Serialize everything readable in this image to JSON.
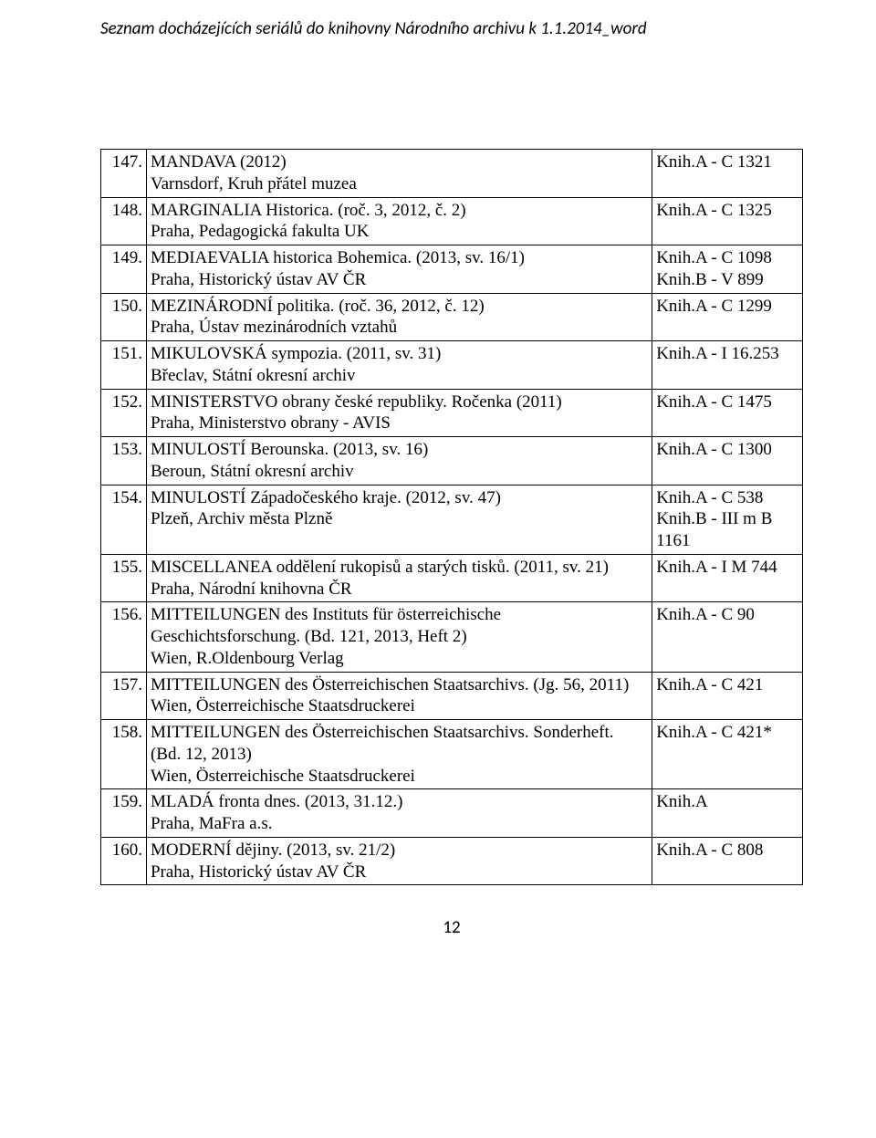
{
  "header": "Seznam docházejících seriálů do knihovny Národního archivu k 1.1.2014_word",
  "page_number": "12",
  "rows": [
    {
      "num": "147.",
      "title": "MANDAVA (2012)",
      "sub": "Varnsdorf, Kruh přátel muzea",
      "code1": "Knih.A - C 1321",
      "code2": ""
    },
    {
      "num": "148.",
      "title": "MARGINALIA Historica. (roč. 3, 2012, č. 2)",
      "sub": "Praha, Pedagogická fakulta UK",
      "code1": "Knih.A - C 1325",
      "code2": ""
    },
    {
      "num": "149.",
      "title": "MEDIAEVALIA historica Bohemica. (2013, sv. 16/1)",
      "sub": "Praha, Historický ústav AV ČR",
      "code1": "Knih.A - C 1098",
      "code2": "Knih.B - V 899"
    },
    {
      "num": "150.",
      "title": "MEZINÁRODNÍ politika. (roč. 36, 2012, č. 12)",
      "sub": "Praha, Ústav mezinárodních vztahů",
      "code1": "Knih.A - C 1299",
      "code2": ""
    },
    {
      "num": "151.",
      "title": "MIKULOVSKÁ sympozia. (2011, sv. 31)",
      "sub": "Břeclav, Státní okresní archiv",
      "code1": "Knih.A - I 16.253",
      "code2": ""
    },
    {
      "num": "152.",
      "title": "MINISTERSTVO obrany české republiky. Ročenka (2011)",
      "sub": "Praha, Ministerstvo obrany - AVIS",
      "code1": "Knih.A - C 1475",
      "code2": ""
    },
    {
      "num": "153.",
      "title": "MINULOSTÍ Berounska. (2013, sv. 16)",
      "sub": "Beroun, Státní okresní archiv",
      "code1": "Knih.A - C 1300",
      "code2": ""
    },
    {
      "num": "154.",
      "title": "MINULOSTÍ Západočeského kraje. (2012, sv. 47)",
      "sub": "Plzeň, Archiv města Plzně",
      "code1": "Knih.A - C 538",
      "code2": "Knih.B - III m B 1161"
    },
    {
      "num": "155.",
      "title": "MISCELLANEA oddělení rukopisů a starých tisků. (2011, sv. 21)",
      "sub": "Praha, Národní knihovna ČR",
      "code1": "Knih.A - I M 744",
      "code2": ""
    },
    {
      "num": "156.",
      "title": "MITTEILUNGEN des Instituts für österreichische Geschichtsforschung. (Bd. 121, 2013, Heft 2)",
      "sub": "Wien, R.Oldenbourg Verlag",
      "code1": "Knih.A - C 90",
      "code2": ""
    },
    {
      "num": "157.",
      "title": "MITTEILUNGEN des Österreichischen Staatsarchivs. (Jg. 56, 2011)",
      "sub": "Wien, Österreichische Staatsdruckerei",
      "code1": "Knih.A - C 421",
      "code2": ""
    },
    {
      "num": "158.",
      "title": "MITTEILUNGEN des Österreichischen Staatsarchivs. Sonderheft. (Bd. 12, 2013)",
      "sub": "Wien, Österreichische Staatsdruckerei",
      "code1": "Knih.A - C 421*",
      "code2": ""
    },
    {
      "num": "159.",
      "title": "MLADÁ fronta dnes. (2013, 31.12.)",
      "sub": "Praha, MaFra a.s.",
      "code1": "Knih.A",
      "code2": ""
    },
    {
      "num": "160.",
      "title": "MODERNÍ dějiny. (2013, sv. 21/2)",
      "sub": "Praha, Historický ústav AV ČR",
      "code1": "Knih.A - C 808",
      "code2": ""
    }
  ]
}
